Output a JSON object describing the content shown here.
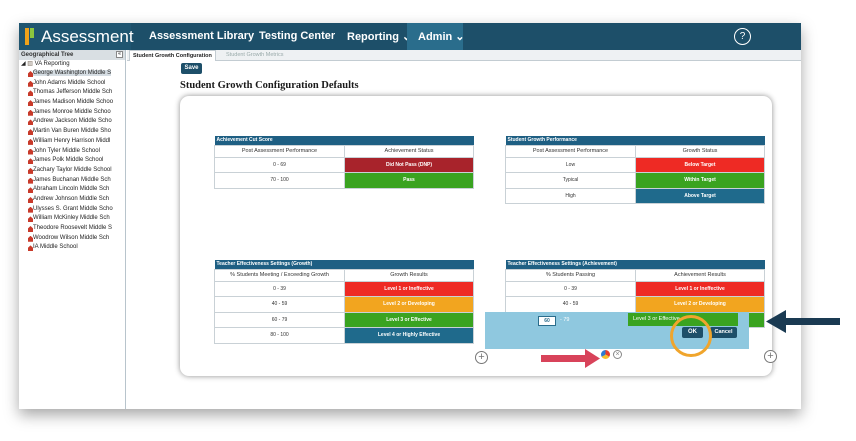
{
  "app": {
    "title": "Assessment",
    "nav": [
      "Assessment Library",
      "Testing Center",
      "Reporting ⌄",
      "Admin ⌄"
    ],
    "help_glyph": "?"
  },
  "sidebar": {
    "header": "Geographical Tree",
    "collapse_glyph": "«",
    "root": "VA Reporting",
    "items": [
      "George Washington Middle S",
      "John Adams Middle School",
      "Thomas Jefferson Middle Sch",
      "James Madison Middle Schoo",
      "James Monroe Middle Schoo",
      "Andrew Jackson Middle Scho",
      "Martin Van Buren Middle Sho",
      "William Henry Harrison Middl",
      "John Tyler Middle School",
      "James Polk Middle School",
      "Zachary Taylor Middle School",
      "James Buchanan Middle Sch",
      "Abraham Lincoln Middle Sch",
      "Andrew Johnson Middle Sch",
      "Ulysses S. Grant Middle Scho",
      "William McKinley Middle Sch",
      "Theodore Roosevelt Middle S",
      "Woodrow Wilson Middle Sch",
      "IA Middle School"
    ]
  },
  "tabs": [
    "Student Growth Configuration",
    "Student Growth Metrics"
  ],
  "page": {
    "save_label": "Save",
    "heading": "Student Growth Configuration Defaults"
  },
  "tables": {
    "cut_score": {
      "title": "Achievement Cut Score",
      "col1": "Post Assessment Performance",
      "col2": "Achievement Status",
      "rows": [
        {
          "range": "0 - 69",
          "status": "Did Not Pass (DNP)",
          "color": "#a8232b"
        },
        {
          "range": "70 - 100",
          "status": "Pass",
          "color": "#3aa320"
        }
      ]
    },
    "growth_perf": {
      "title": "Student Growth Performance",
      "col1": "Post Assessment Performance",
      "col2": "Growth Status",
      "rows": [
        {
          "range": "Low",
          "status": "Below Target",
          "color": "#ee2a24"
        },
        {
          "range": "Typical",
          "status": "Within Target",
          "color": "#3aa320"
        },
        {
          "range": "High",
          "status": "Above Target",
          "color": "#1f6a8c"
        }
      ]
    },
    "teacher_growth": {
      "title": "Teacher Effectiveness Settings (Growth)",
      "col1": "% Students Meeting / Exceeding Growth",
      "col2": "Growth Results",
      "rows": [
        {
          "range": "0 - 39",
          "status": "Level 1 or Ineffective",
          "color": "#ee2a24"
        },
        {
          "range": "40 - 59",
          "status": "Level 2 or Developing",
          "color": "#f2a51f"
        },
        {
          "range": "60 - 79",
          "status": "Level 3 or Effective",
          "color": "#3aa320"
        },
        {
          "range": "80 - 100",
          "status": "Level 4 or Highly Effective",
          "color": "#1f6a8c"
        }
      ]
    },
    "teacher_achievement": {
      "title": "Teacher Effectiveness Settings (Achievement)",
      "col1": "% Students Passing",
      "col2": "Achievement Results",
      "rows": [
        {
          "range": "0 - 39",
          "status": "Level 1 or Ineffective",
          "color": "#ee2a24"
        },
        {
          "range": "40 - 59",
          "status": "Level 2 or Developing",
          "color": "#f2a51f"
        },
        {
          "range": "60 - 79",
          "status": "Level 3 or Effective",
          "color": "#3aa320"
        }
      ]
    }
  },
  "edit_row": {
    "range_start": "60",
    "range_end": "- 79",
    "result": "Level 3 or Effective",
    "ok_label": "OK",
    "cancel_label": "Cancel",
    "clear_glyph": "×"
  },
  "add_glyph": "+",
  "annotation_colors": {
    "arrow_red": "#d8435a",
    "arrow_navy": "#1a3a52",
    "highlight": "#f0a52c"
  }
}
